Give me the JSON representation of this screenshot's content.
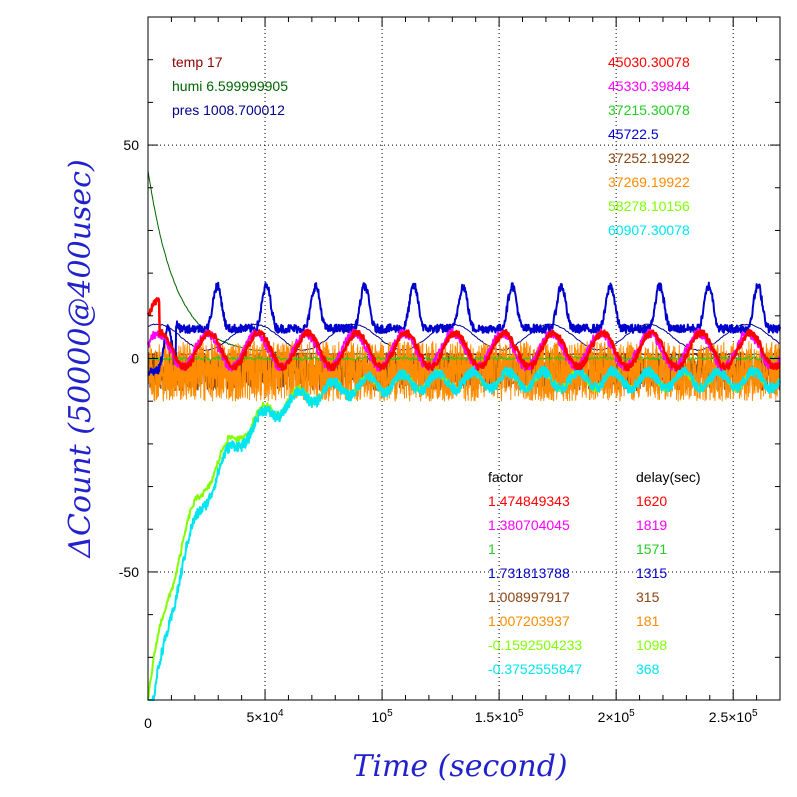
{
  "chart_data": {
    "type": "line",
    "xlabel": "Time (second)",
    "ylabel": "ΔCount (50000@400usec)",
    "xlim": [
      0,
      270000
    ],
    "ylim": [
      -80,
      80
    ],
    "grid": true,
    "x_ticks": [
      {
        "value": 50000,
        "label": "5×10",
        "sup": "4"
      },
      {
        "value": 100000,
        "label": "10",
        "sup": "5"
      },
      {
        "value": 150000,
        "label": "1.5×10",
        "sup": "5"
      },
      {
        "value": 200000,
        "label": "2×10",
        "sup": "5"
      },
      {
        "value": 250000,
        "label": "2.5×10",
        "sup": "5"
      }
    ],
    "x_zero_label": "0",
    "y_ticks": [
      {
        "value": 50,
        "label": "50"
      },
      {
        "value": 0,
        "label": "0"
      },
      {
        "value": -50,
        "label": "-50"
      }
    ],
    "environment": [
      {
        "label": "temp 17",
        "color": "#8b0000"
      },
      {
        "label": "humi 6.599999905",
        "color": "#006400"
      },
      {
        "label": "pres 1008.700012",
        "color": "#00008b"
      }
    ],
    "legend_header": {
      "factor": "factor",
      "delay": "delay(sec)"
    },
    "series": [
      {
        "name": "45030.30078",
        "factor": "1.474849343",
        "delay": "1620",
        "color": "#ff0000"
      },
      {
        "name": "45330.39844",
        "factor": "1.380704045",
        "delay": "1819",
        "color": "#ff00ff"
      },
      {
        "name": "37215.30078",
        "factor": "1",
        "delay": "1571",
        "color": "#22cc22"
      },
      {
        "name": "45722.5",
        "factor": "1.731813788",
        "delay": "1315",
        "color": "#0000cd"
      },
      {
        "name": "37252.19922",
        "factor": "1.008997917",
        "delay": "315",
        "color": "#8b4513"
      },
      {
        "name": "37269.19922",
        "factor": "1.007203937",
        "delay": "181",
        "color": "#ff8c00"
      },
      {
        "name": "58278.10156",
        "factor": "-0.1592504233",
        "delay": "1098",
        "color": "#7fff00"
      },
      {
        "name": "60907.30078",
        "factor": "-0.3752555847",
        "delay": "368",
        "color": "#00e5ee"
      }
    ]
  }
}
